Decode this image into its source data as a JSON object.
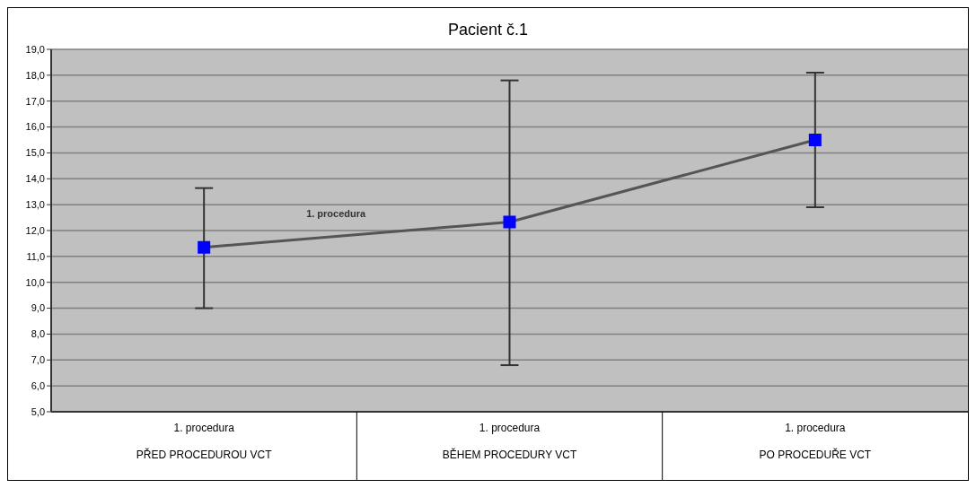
{
  "chart_data": {
    "type": "line",
    "title": "Pacient č.1",
    "categories": [
      "1. procedura\nPŘED PROCEDUROU VCT",
      "1. procedura\nBĚHEM PROCEDURY VCT",
      "1. procedura\nPO PROCEDUŘE VCT"
    ],
    "series": [
      {
        "name": "1. procedura",
        "color": "#0000ff",
        "values": [
          11.35,
          12.33,
          15.5
        ],
        "errors": [
          [
            9.0,
            13.64
          ],
          [
            6.8,
            17.8
          ],
          [
            12.9,
            18.1
          ]
        ]
      }
    ],
    "ylim": [
      5,
      19
    ],
    "yticks": [
      {
        "value": 5,
        "label": "5,0"
      },
      {
        "value": 6,
        "label": "6,0"
      },
      {
        "value": 7,
        "label": "7,0"
      },
      {
        "value": 8,
        "label": "8,0"
      },
      {
        "value": 9,
        "label": "9,0"
      },
      {
        "value": 10,
        "label": "10,0"
      },
      {
        "value": 11,
        "label": "11,0"
      },
      {
        "value": 12,
        "label": "12,0"
      },
      {
        "value": 13,
        "label": "13,0"
      },
      {
        "value": 14,
        "label": "14,0"
      },
      {
        "value": 15,
        "label": "15,0"
      },
      {
        "value": 16,
        "label": "16,0"
      },
      {
        "value": 17,
        "label": "17,0"
      },
      {
        "value": 18,
        "label": "18,0"
      },
      {
        "value": 19,
        "label": "19,0"
      }
    ],
    "grid": "y",
    "legend": false,
    "marker": "square"
  }
}
